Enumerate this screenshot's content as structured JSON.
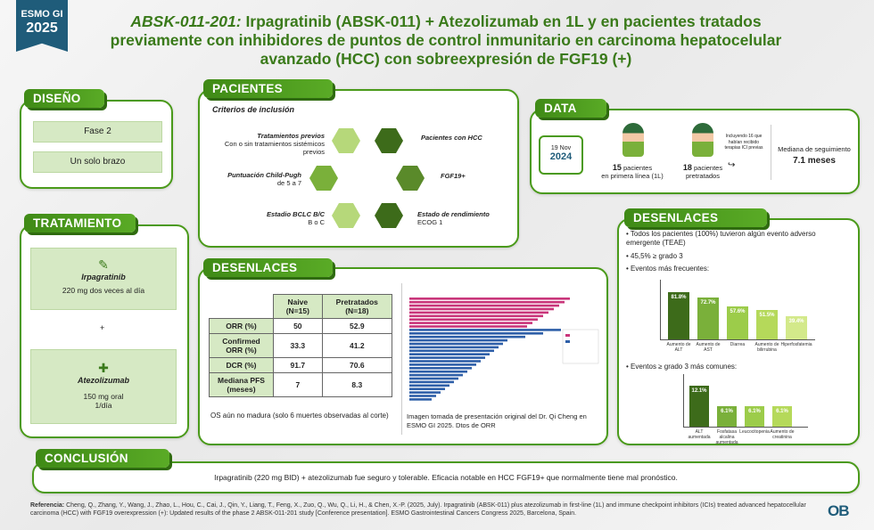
{
  "badge": {
    "line1": "ESMO GI",
    "line2": "2025"
  },
  "title": {
    "study": "ABSK-011-201:",
    "rest": " Irpagratinib (ABSK-011) + Atezolizumab en 1L y en pacientes tratados previamente con inhibidores de puntos de control inmunitario en carcinoma hepatocelular avanzado (HCC) con sobreexpresión de FGF19 (+)"
  },
  "design": {
    "header": "DISEÑO",
    "phase": "Fase 2",
    "arm": "Un solo brazo"
  },
  "treatment": {
    "header": "TRATAMIENTO",
    "drug1": "Irpagratinib",
    "dose1": "220 mg dos veces al día",
    "plus": "+",
    "drug2": "Atezolizumab",
    "dose2a": "150 mg oral",
    "dose2b": "1/día"
  },
  "patients": {
    "header": "PACIENTES",
    "criteria": "Criterios de inclusión",
    "c1_title": "Tratamientos previos",
    "c1_text": "Con o sin tratamientos sistémicos previos",
    "c2_title": "Puntuación Child-Pugh",
    "c2_text": "de 5 a 7",
    "c3_title": "Estadio BCLC B/C",
    "c3_text": "B o C",
    "c4_title": "Pacientes con HCC",
    "c5_title": "FGF19+",
    "c6_title": "Estado de rendimiento",
    "c6_text": "ECOG 1"
  },
  "data": {
    "header": "DATA",
    "date_day": "19 Nov",
    "date_year": "2024",
    "n1": "15",
    "n1_label1": "pacientes",
    "n1_label2": "en primera línea (1L)",
    "n2": "18",
    "n2_label1": "pacientes",
    "n2_label2": "pretratados",
    "note": "Incluyendo 16 que habían recibido terapias ICI previas",
    "followup_label": "Mediana de seguimiento",
    "followup_value": "7.1 meses"
  },
  "outcomes_mid": {
    "header": "DESENLACES",
    "col1": "Naive (N=15)",
    "col2": "Pretratados (N=18)",
    "rows": [
      {
        "label": "ORR (%)",
        "a": "50",
        "b": "52.9"
      },
      {
        "label": "Confirmed ORR (%)",
        "a": "33.3",
        "b": "41.2"
      },
      {
        "label": "DCR (%)",
        "a": "91.7",
        "b": "70.6"
      },
      {
        "label": "Mediana PFS (meses)",
        "a": "7",
        "b": "8.3"
      }
    ],
    "os_note": "OS aún no madura (solo 6 muertes observadas al corte)",
    "image_caption": "Imagen tomada de presentación original del Dr. Qi Cheng en ESMO GI 2025. Dtos de ORR"
  },
  "outcomes_right": {
    "header": "DESENLACES",
    "b1": "Todos los pacientes (100%) tuvieron algún evento adverso emergente (TEAE)",
    "b2": "45,5% ≥ grado 3",
    "b3": "Eventos más frecuentes:",
    "b4": "Eventos ≥ grado 3 más comunes:"
  },
  "conclusion": {
    "header": "CONCLUSIÓN",
    "text": "Irpagratinib (220 mg BID) + atezolizumab fue seguro y tolerable. Eficacia notable en HCC FGF19+ que normalmente tiene mal pronóstico."
  },
  "reference": {
    "label": "Referencia:",
    "text": " Cheng, Q., Zhang, Y., Wang, J., Zhao, L., Hou, C., Cai, J., Qin, Y., Liang, T., Feng, X., Zuo, Q., Wu, Q., Li, H., & Chen, X.-P. (2025, July). Irpagratinib (ABSK-011) plus atezolizumab in first-line (1L) and immune checkpoint inhibitors (ICIs) treated advanced hepatocellular carcinoma (HCC) with FGF19 overexpression (+): Updated results of the phase 2 ABSK-011-201 study [Conference presentation]. ESMO Gastrointestinal Cancers Congress 2025, Barcelona, Spain."
  },
  "logo": "OB",
  "chart_data": [
    {
      "type": "bar",
      "categories": [
        "Aumento de ALT",
        "Aumento de AST",
        "Diarrea",
        "Aumento de bilirrubina",
        "Hiperfosfatemia"
      ],
      "values": [
        81.8,
        72.7,
        57.6,
        51.5,
        39.4
      ],
      "value_labels": [
        "81.8%",
        "72.7%",
        "57.6%",
        "51.5%",
        "39.4%"
      ],
      "ylim": [
        0,
        100
      ],
      "colors": [
        "#3d6b1a",
        "#7ab03a",
        "#9ccc4a",
        "#b5d95a",
        "#d3e98a"
      ]
    },
    {
      "type": "bar",
      "categories": [
        "ALT aumentada",
        "Fosfatasa alcalina aumentada",
        "Leucocitopenia",
        "Aumento de creatinina"
      ],
      "values": [
        12.1,
        6.1,
        6.1,
        6.1
      ],
      "value_labels": [
        "12.1%",
        "6.1%",
        "6.1%",
        "6.1%"
      ],
      "ylim": [
        0,
        15
      ],
      "colors": [
        "#3d6b1a",
        "#7ab03a",
        "#9ccc4a",
        "#b5d95a"
      ]
    }
  ]
}
